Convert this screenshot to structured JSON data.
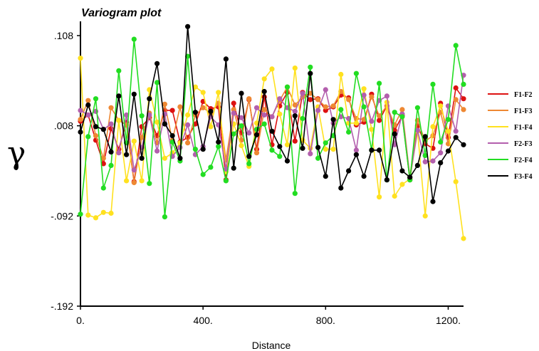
{
  "chart_data": {
    "type": "line",
    "title": "Variogram plot",
    "xlabel": "Distance",
    "ylabel": "γ",
    "xlim": [
      0,
      1250
    ],
    "ylim": [
      -0.192,
      0.108
    ],
    "x_ticks": [
      {
        "value": 0,
        "label": "0."
      },
      {
        "value": 400,
        "label": "400."
      },
      {
        "value": 800,
        "label": "800."
      },
      {
        "value": 1200,
        "label": "1200."
      }
    ],
    "y_ticks": [
      {
        "value": 0.108,
        "label": ".108"
      },
      {
        "value": 0.008,
        "label": ".008"
      },
      {
        "value": -0.092,
        "label": "-.092"
      },
      {
        "value": -0.192,
        "label": "-.192"
      }
    ],
    "legend_position": "right",
    "x": [
      0,
      25,
      50,
      75,
      100,
      125,
      150,
      175,
      200,
      225,
      250,
      275,
      300,
      325,
      350,
      375,
      400,
      425,
      450,
      475,
      500,
      525,
      550,
      575,
      600,
      625,
      650,
      675,
      700,
      725,
      750,
      775,
      800,
      825,
      850,
      875,
      900,
      925,
      950,
      975,
      1000,
      1025,
      1050,
      1075,
      1100,
      1125,
      1150,
      1175,
      1200,
      1225,
      1250
    ],
    "series": [
      {
        "name": "F1-F2",
        "color": "#dd1111",
        "values": [
          0.013,
          0.02,
          -0.008,
          -0.034,
          0.005,
          -0.018,
          0.012,
          -0.054,
          0.007,
          0.017,
          -0.003,
          0.025,
          0.025,
          -0.01,
          -0.005,
          0.01,
          0.035,
          0.027,
          0.029,
          -0.052,
          0.033,
          0.0,
          0.037,
          -0.018,
          0.04,
          -0.013,
          0.03,
          0.045,
          -0.009,
          0.045,
          0.037,
          0.038,
          0.025,
          0.029,
          0.042,
          0.039,
          0.009,
          0.012,
          0.043,
          0.014,
          0.03,
          0.003,
          0.019,
          -0.052,
          0.008,
          -0.012,
          -0.017,
          0.033,
          -0.005,
          0.05,
          0.038
        ]
      },
      {
        "name": "F1-F3",
        "color": "#ee8833",
        "values": [
          0.015,
          0.036,
          -0.003,
          -0.028,
          0.028,
          0.014,
          0.009,
          -0.055,
          -0.005,
          0.022,
          -0.011,
          0.032,
          -0.008,
          0.029,
          -0.011,
          0.02,
          0.028,
          0.022,
          0.033,
          -0.03,
          0.026,
          -0.008,
          0.038,
          -0.022,
          0.026,
          0.018,
          0.036,
          0.051,
          0.031,
          0.04,
          0.044,
          0.037,
          0.029,
          0.03,
          0.046,
          0.037,
          0.016,
          0.015,
          0.04,
          0.019,
          0.03,
          0.009,
          0.026,
          -0.049,
          0.014,
          -0.009,
          -0.003,
          0.023,
          -0.012,
          0.037,
          0.026
        ]
      },
      {
        "name": "F1-F4",
        "color": "#ffe11f",
        "values": [
          0.083,
          -0.091,
          -0.094,
          -0.088,
          -0.089,
          0.014,
          -0.053,
          -0.009,
          -0.053,
          0.048,
          0.012,
          -0.028,
          -0.022,
          -0.011,
          0.02,
          0.051,
          0.045,
          0.007,
          0.045,
          -0.043,
          0.01,
          -0.014,
          -0.037,
          0.011,
          0.06,
          0.071,
          0.021,
          -0.013,
          0.072,
          -0.008,
          -0.017,
          0.029,
          -0.018,
          -0.018,
          0.065,
          0.011,
          0.011,
          0.049,
          0.004,
          -0.071,
          0.034,
          -0.07,
          -0.057,
          -0.051,
          0.002,
          -0.092,
          0.007,
          0.03,
          0.002,
          -0.054,
          -0.117
        ]
      },
      {
        "name": "F2-F3",
        "color": "#b35fad",
        "values": [
          0.025,
          0.02,
          0.024,
          0.004,
          0.01,
          -0.022,
          0.02,
          -0.041,
          -0.016,
          0.02,
          -0.02,
          0.021,
          -0.026,
          -0.016,
          0.009,
          -0.024,
          -0.015,
          0.018,
          0.009,
          -0.04,
          0.022,
          0.017,
          0.0,
          0.028,
          0.02,
          0.018,
          0.038,
          0.028,
          0.024,
          0.044,
          -0.023,
          0.025,
          0.048,
          0.011,
          0.018,
          0.016,
          -0.019,
          0.042,
          0.013,
          0.036,
          0.041,
          -0.013,
          0.021,
          -0.05,
          0.003,
          -0.032,
          -0.031,
          -0.022,
          0.03,
          0.002,
          0.064
        ]
      },
      {
        "name": "F2-F4",
        "color": "#22dd22",
        "values": [
          -0.09,
          -0.004,
          0.038,
          -0.061,
          -0.036,
          0.069,
          -0.011,
          0.104,
          0.019,
          -0.056,
          0.056,
          -0.093,
          -0.01,
          -0.031,
          0.085,
          -0.018,
          -0.046,
          -0.038,
          -0.015,
          -0.053,
          -0.001,
          0.008,
          -0.034,
          0.004,
          0.01,
          -0.019,
          -0.026,
          0.051,
          -0.067,
          0.016,
          0.073,
          -0.028,
          -0.011,
          -0.003,
          0.026,
          0.001,
          0.066,
          0.029,
          -0.019,
          0.055,
          -0.052,
          0.023,
          0.018,
          -0.052,
          0.028,
          -0.025,
          0.054,
          -0.01,
          0.015,
          0.097,
          0.054
        ]
      },
      {
        "name": "F3-F4",
        "color": "#000000",
        "values": [
          0.001,
          0.031,
          0.007,
          0.004,
          -0.021,
          0.041,
          -0.024,
          0.043,
          -0.028,
          0.038,
          0.077,
          0.01,
          -0.003,
          -0.028,
          0.118,
          0.023,
          -0.018,
          0.024,
          -0.01,
          0.082,
          -0.039,
          0.044,
          -0.026,
          -0.002,
          0.046,
          0.002,
          -0.015,
          -0.031,
          0.019,
          -0.017,
          0.066,
          -0.016,
          -0.048,
          0.015,
          -0.061,
          -0.042,
          -0.024,
          -0.048,
          -0.019,
          -0.019,
          -0.052,
          -0.001,
          -0.042,
          -0.049,
          -0.036,
          -0.004,
          -0.076,
          -0.033,
          -0.02,
          -0.005,
          -0.013
        ]
      }
    ]
  }
}
